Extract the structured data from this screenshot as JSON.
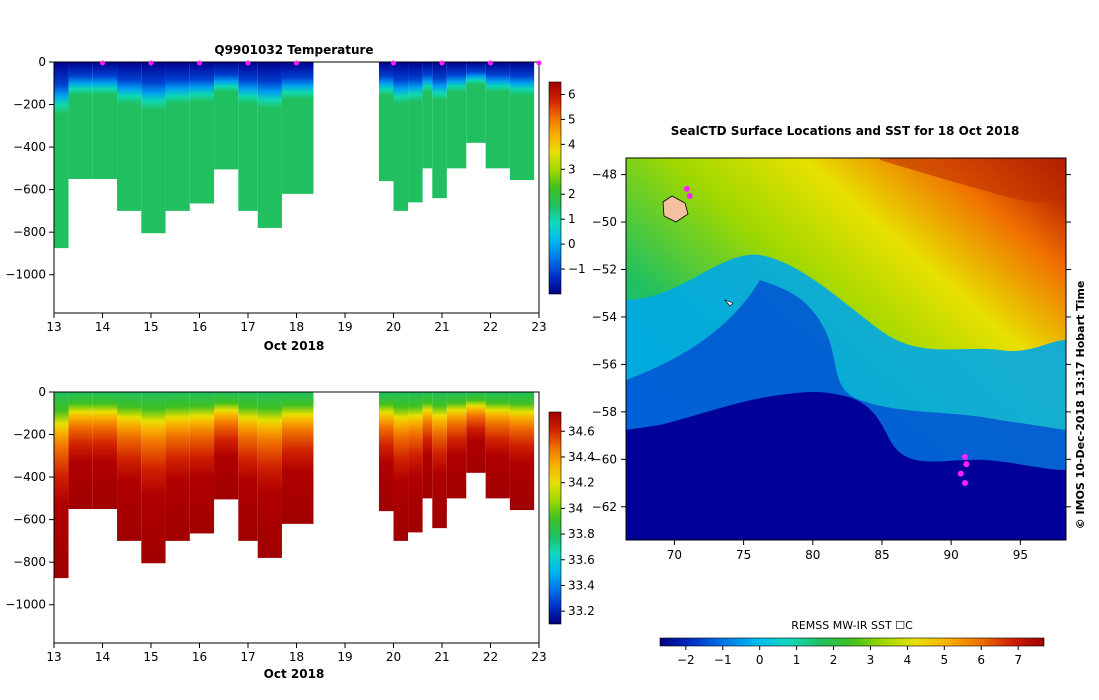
{
  "palette": [
    "#000080",
    "#0030c8",
    "#0078e8",
    "#00b8f0",
    "#10d8c0",
    "#20c060",
    "#40c020",
    "#a0d800",
    "#e8e000",
    "#f8b000",
    "#f07000",
    "#d02000",
    "#a00000"
  ],
  "panels": {
    "temp_title": "Q9901032  Temperature",
    "x_label": "Oct 2018",
    "map_title": "SealCTD Surface Locations and SST for 18 Oct 2018",
    "sst_label": "REMSS MW-IR SST ☐C",
    "credit": "©  IMOS 10-Dec-2018 13:17 Hobart Time"
  },
  "chart_data": [
    {
      "type": "heatmap",
      "title": "Q9901032  Temperature",
      "xlabel": "Oct 2018",
      "x_ticks": [
        "13",
        "14",
        "15",
        "16",
        "17",
        "18",
        "19",
        "20",
        "21",
        "22",
        "23"
      ],
      "xlim": [
        13,
        23
      ],
      "ylim": [
        -1180,
        0
      ],
      "y_ticks": [
        "0",
        "−200",
        "−400",
        "−600",
        "−800",
        "−1000"
      ],
      "y_tick_values": [
        0,
        -200,
        -400,
        -600,
        -800,
        -1000
      ],
      "colorbar_ticks": [
        -1,
        0,
        1,
        2,
        3,
        4,
        5,
        6
      ],
      "colorbar_range": [
        -2,
        6.5
      ],
      "profiles": [
        {
          "day": 13.2,
          "max_depth": 875,
          "surface": -1.7,
          "deep": 2.0
        },
        {
          "day": 13.5,
          "max_depth": 550,
          "surface": -1.7,
          "deep": 2.0
        },
        {
          "day": 14.0,
          "max_depth": 550,
          "surface": -1.7,
          "deep": 2.0
        },
        {
          "day": 14.5,
          "max_depth": 700,
          "surface": -1.7,
          "deep": 2.0
        },
        {
          "day": 15.0,
          "max_depth": 805,
          "surface": -1.7,
          "deep": 1.9
        },
        {
          "day": 15.5,
          "max_depth": 700,
          "surface": -1.7,
          "deep": 2.0
        },
        {
          "day": 16.0,
          "max_depth": 665,
          "surface": -1.7,
          "deep": 2.0
        },
        {
          "day": 16.5,
          "max_depth": 505,
          "surface": -1.7,
          "deep": 2.0
        },
        {
          "day": 17.0,
          "max_depth": 700,
          "surface": -1.7,
          "deep": 2.0
        },
        {
          "day": 17.4,
          "max_depth": 780,
          "surface": -1.7,
          "deep": 2.0
        },
        {
          "day": 17.9,
          "max_depth": 620,
          "surface": -1.7,
          "deep": 2.0
        },
        {
          "day": 19.9,
          "max_depth": 560,
          "surface": -1.7,
          "deep": 2.0
        },
        {
          "day": 20.2,
          "max_depth": 700,
          "surface": -1.7,
          "deep": 2.0
        },
        {
          "day": 20.5,
          "max_depth": 660,
          "surface": -1.7,
          "deep": 2.0
        },
        {
          "day": 20.8,
          "max_depth": 500,
          "surface": -1.7,
          "deep": 2.0
        },
        {
          "day": 21.0,
          "max_depth": 640,
          "surface": -1.7,
          "deep": 2.0
        },
        {
          "day": 21.3,
          "max_depth": 500,
          "surface": -1.7,
          "deep": 2.0
        },
        {
          "day": 21.7,
          "max_depth": 380,
          "surface": -1.7,
          "deep": 2.0
        },
        {
          "day": 22.1,
          "max_depth": 500,
          "surface": -1.7,
          "deep": 2.0
        },
        {
          "day": 22.6,
          "max_depth": 555,
          "surface": -1.7,
          "deep": 2.0
        }
      ],
      "markers": [
        14,
        15,
        16,
        17,
        18,
        20,
        21,
        22,
        23
      ]
    },
    {
      "type": "heatmap",
      "title": "",
      "xlabel": "Oct 2018",
      "x_ticks": [
        "13",
        "14",
        "15",
        "16",
        "17",
        "18",
        "19",
        "20",
        "21",
        "22",
        "23"
      ],
      "xlim": [
        13,
        23
      ],
      "ylim": [
        -1180,
        0
      ],
      "y_ticks": [
        "0",
        "−200",
        "−400",
        "−600",
        "−800",
        "−1000"
      ],
      "y_tick_values": [
        0,
        -200,
        -400,
        -600,
        -800,
        -1000
      ],
      "colorbar_ticks": [
        "34.6",
        "34.4",
        "34.2",
        "34",
        "33.8",
        "33.6",
        "33.4",
        "33.2"
      ],
      "colorbar_values": [
        34.6,
        34.4,
        34.2,
        34.0,
        33.8,
        33.6,
        33.4,
        33.2
      ],
      "colorbar_range": [
        33.1,
        34.75
      ]
    },
    {
      "type": "heatmap",
      "title": "SealCTD Surface Locations and SST for 18 Oct 2018",
      "x_ticks": [
        "70",
        "75",
        "80",
        "85",
        "90",
        "95"
      ],
      "x_tick_values": [
        70,
        75,
        80,
        85,
        90,
        95
      ],
      "xlim": [
        66.5,
        98.3
      ],
      "y_ticks": [
        "−48",
        "−50",
        "−52",
        "−54",
        "−56",
        "−58",
        "−60",
        "−62"
      ],
      "y_tick_values": [
        -48,
        -50,
        -52,
        -54,
        -56,
        -58,
        -60,
        -62
      ],
      "ylim": [
        -63.4,
        -47.3
      ],
      "colorbar_label": "REMSS MW-IR SST ☐C",
      "colorbar_ticks": [
        "−2",
        "−1",
        "0",
        "1",
        "2",
        "3",
        "4",
        "5",
        "6",
        "7"
      ],
      "colorbar_values": [
        -2,
        -1,
        0,
        1,
        2,
        3,
        4,
        5,
        6,
        7
      ],
      "colorbar_range": [
        -2.7,
        7.7
      ],
      "seal_locations": [
        [
          70.9,
          -48.6
        ],
        [
          71.1,
          -48.9
        ],
        [
          91.0,
          -59.9
        ],
        [
          91.1,
          -60.2
        ],
        [
          90.7,
          -60.6
        ],
        [
          91.0,
          -61.0
        ]
      ]
    }
  ]
}
